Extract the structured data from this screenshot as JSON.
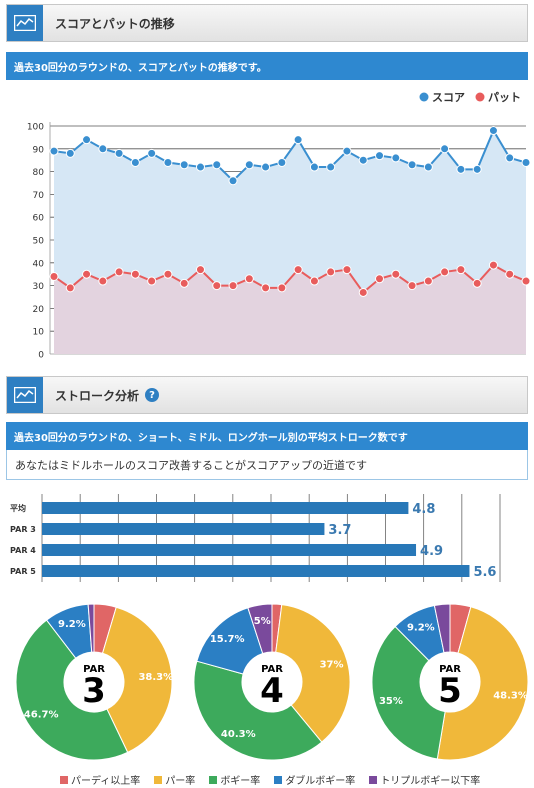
{
  "section1": {
    "title": "スコアとパットの推移",
    "description": "過去30回分のラウンドの、スコアとパットの推移です。"
  },
  "section2": {
    "title": "ストローク分析",
    "help": "?",
    "description": "過去30回分のラウンドの、ショート、ミドル、ロングホール別の平均ストローク数です",
    "advice": "あなたはミドルホールのスコア改善することがスコアアップの近道です"
  },
  "colors": {
    "accent": "#2e88d0",
    "score": "#3a8fd0",
    "putt": "#e85c5c",
    "bar": "#2878b8",
    "birdie": "#e06666",
    "par": "#f0b83a",
    "bogey": "#3daa5c",
    "double": "#2b7fc4",
    "triple": "#7a4a9c"
  },
  "chart_data": [
    {
      "type": "line",
      "legend": [
        "スコア",
        "パット"
      ],
      "ylim": [
        0,
        100
      ],
      "yticks": [
        0,
        10,
        20,
        30,
        40,
        50,
        60,
        70,
        80,
        90,
        100
      ],
      "series": [
        {
          "name": "スコア",
          "values": [
            89,
            88,
            94,
            90,
            88,
            84,
            88,
            84,
            83,
            82,
            83,
            76,
            83,
            82,
            84,
            94,
            82,
            82,
            89,
            85,
            87,
            86,
            83,
            82,
            90,
            81,
            81,
            98,
            86,
            84
          ]
        },
        {
          "name": "パット",
          "values": [
            34,
            29,
            35,
            32,
            36,
            35,
            32,
            35,
            31,
            37,
            30,
            30,
            33,
            29,
            29,
            37,
            32,
            36,
            37,
            27,
            33,
            35,
            30,
            32,
            36,
            37,
            31,
            39,
            35,
            32
          ]
        }
      ]
    },
    {
      "type": "bar",
      "orientation": "horizontal",
      "categories": [
        "平均",
        "PAR 3",
        "PAR 4",
        "PAR 5"
      ],
      "values": [
        4.8,
        3.7,
        4.9,
        5.6
      ],
      "value_labels": [
        "4.8",
        "3.7",
        "4.9",
        "5.6"
      ],
      "xlim": [
        0,
        6
      ]
    },
    {
      "type": "pie",
      "title_small": "PAR",
      "title_big": "3",
      "categories": [
        "パーディ以上率",
        "パー率",
        "ボギー率",
        "ダブルボギー率",
        "トリプルボギー以下率"
      ],
      "values": [
        4.6,
        38.3,
        46.7,
        9.2,
        1.2
      ],
      "labels": [
        "",
        "38.3%",
        "46.7%",
        "9.2%",
        ""
      ]
    },
    {
      "type": "pie",
      "title_small": "PAR",
      "title_big": "4",
      "categories": [
        "パーディ以上率",
        "パー率",
        "ボギー率",
        "ダブルボギー率",
        "トリプルボギー以下率"
      ],
      "values": [
        2.0,
        37,
        40.3,
        15.7,
        5
      ],
      "labels": [
        "",
        "37%",
        "40.3%",
        "15.7%",
        "5%"
      ]
    },
    {
      "type": "pie",
      "title_small": "PAR",
      "title_big": "5",
      "categories": [
        "パーディ以上率",
        "パー率",
        "ボギー率",
        "ダブルボギー率",
        "トリプルボギー以下率"
      ],
      "values": [
        4.3,
        48.3,
        35,
        9.2,
        3.2
      ],
      "labels": [
        "",
        "48.3%",
        "35%",
        "9.2%",
        ""
      ]
    }
  ],
  "legend": [
    {
      "label": "パーディ以上率",
      "color": "#e06666"
    },
    {
      "label": "パー率",
      "color": "#f0b83a"
    },
    {
      "label": "ボギー率",
      "color": "#3daa5c"
    },
    {
      "label": "ダブルボギー率",
      "color": "#2b7fc4"
    },
    {
      "label": "トリプルボギー以下率",
      "color": "#7a4a9c"
    }
  ]
}
